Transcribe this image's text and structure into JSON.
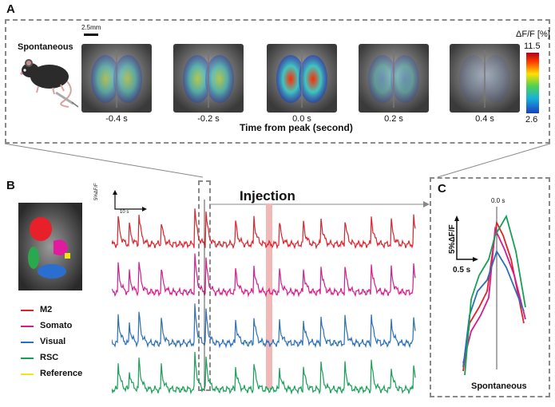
{
  "panelA": {
    "letter": "A",
    "condition": "Spontaneous",
    "scale_bar": "2.5mm",
    "colorbar_title": "ΔF/F [%]",
    "colorbar_max": "11.5",
    "colorbar_min": "2.6",
    "time_labels": [
      "-0.4 s",
      "-0.2 s",
      "0.0 s",
      "0.2 s",
      "0.4 s"
    ],
    "xlabel": "Time from peak (second)",
    "frame_activity": [
      0.55,
      0.65,
      1.0,
      0.4,
      0.1
    ]
  },
  "panelB": {
    "letter": "B",
    "scale_y": "5%ΔF/F",
    "scale_x": "10 s",
    "injection_label": "Injection",
    "legend": [
      {
        "name": "M2",
        "color": "#e0202a"
      },
      {
        "name": "Somato",
        "color": "#d81b8c"
      },
      {
        "name": "Visual",
        "color": "#2a6fb8"
      },
      {
        "name": "RSC",
        "color": "#16a055"
      },
      {
        "name": "Reference",
        "color": "#f2e415"
      }
    ]
  },
  "panelC": {
    "letter": "C",
    "time_marker": "0.0 s",
    "scale_y": "5%ΔF/F",
    "scale_x": "0.5 s",
    "xlabel": "Spontaneous"
  }
}
